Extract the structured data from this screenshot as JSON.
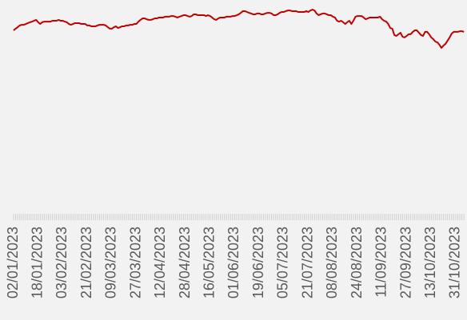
{
  "chart_data": {
    "type": "line",
    "categories": [
      "02/01/2023",
      null,
      null,
      null,
      null,
      null,
      null,
      null,
      null,
      null,
      null,
      null,
      "18/01/2023",
      null,
      null,
      null,
      null,
      null,
      null,
      null,
      null,
      null,
      null,
      null,
      "03/02/2023",
      null,
      null,
      null,
      null,
      null,
      null,
      null,
      null,
      null,
      null,
      null,
      "21/02/2023",
      null,
      null,
      null,
      null,
      null,
      null,
      null,
      null,
      null,
      null,
      null,
      "09/03/2023",
      null,
      null,
      null,
      null,
      null,
      null,
      null,
      null,
      null,
      null,
      null,
      "27/03/2023",
      null,
      null,
      null,
      null,
      null,
      null,
      null,
      null,
      null,
      null,
      null,
      "12/04/2023",
      null,
      null,
      null,
      null,
      null,
      null,
      null,
      null,
      null,
      null,
      null,
      "28/04/2023",
      null,
      null,
      null,
      null,
      null,
      null,
      null,
      null,
      null,
      null,
      null,
      "16/05/2023",
      null,
      null,
      null,
      null,
      null,
      null,
      null,
      null,
      null,
      null,
      null,
      "01/06/2023",
      null,
      null,
      null,
      null,
      null,
      null,
      null,
      null,
      null,
      null,
      null,
      "19/06/2023",
      null,
      null,
      null,
      null,
      null,
      null,
      null,
      null,
      null,
      null,
      null,
      "05/07/2023",
      null,
      null,
      null,
      null,
      null,
      null,
      null,
      null,
      null,
      null,
      null,
      "21/07/2023",
      null,
      null,
      null,
      null,
      null,
      null,
      null,
      null,
      null,
      null,
      null,
      "08/08/2023",
      null,
      null,
      null,
      null,
      null,
      null,
      null,
      null,
      null,
      null,
      null,
      "24/08/2023",
      null,
      null,
      null,
      null,
      null,
      null,
      null,
      null,
      null,
      null,
      null,
      "11/09/2023",
      null,
      null,
      null,
      null,
      null,
      null,
      null,
      null,
      null,
      null,
      null,
      "27/09/2023",
      null,
      null,
      null,
      null,
      null,
      null,
      null,
      null,
      null,
      null,
      null,
      "13/10/2023",
      null,
      null,
      null,
      null,
      null,
      null,
      null,
      null,
      null,
      null,
      null,
      "31/10/2023",
      null,
      null,
      null,
      null
    ],
    "values": [
      85.8,
      86.6,
      87.3,
      88.1,
      88.4,
      88.4,
      88.8,
      89.2,
      89.6,
      89.9,
      90.3,
      90.7,
      89.6,
      88.8,
      89.6,
      89.9,
      89.9,
      89.9,
      89.9,
      90.3,
      90.3,
      90.3,
      90.7,
      90.3,
      90.3,
      89.9,
      89.6,
      88.8,
      88.4,
      88.8,
      89.2,
      89.2,
      89.2,
      88.8,
      88.8,
      88.8,
      88.1,
      88.1,
      87.7,
      87.7,
      87.7,
      88.1,
      88.4,
      88.4,
      88.4,
      88.1,
      87.3,
      86.6,
      86.6,
      87.3,
      87.7,
      86.9,
      87.3,
      87.7,
      87.7,
      88.1,
      88.1,
      88.4,
      88.4,
      88.8,
      88.8,
      89.9,
      90.7,
      91.4,
      91.4,
      91.0,
      90.7,
      90.7,
      91.0,
      91.4,
      91.4,
      91.8,
      91.8,
      91.8,
      92.2,
      92.2,
      92.2,
      92.5,
      92.5,
      92.2,
      91.8,
      92.2,
      92.5,
      92.9,
      92.9,
      92.5,
      92.2,
      92.5,
      93.3,
      93.3,
      92.9,
      92.9,
      92.9,
      92.9,
      92.5,
      92.9,
      92.5,
      91.8,
      91.0,
      90.7,
      91.4,
      91.8,
      91.8,
      91.8,
      92.2,
      92.2,
      92.2,
      92.5,
      92.5,
      92.9,
      93.3,
      94.0,
      94.8,
      94.8,
      94.4,
      94.0,
      93.7,
      93.3,
      93.3,
      93.7,
      93.7,
      93.3,
      93.3,
      93.7,
      94.0,
      94.0,
      93.7,
      92.9,
      92.9,
      93.3,
      94.0,
      94.4,
      94.4,
      94.8,
      95.1,
      95.1,
      94.8,
      94.8,
      94.8,
      94.4,
      94.4,
      94.4,
      94.4,
      94.8,
      94.4,
      95.1,
      95.5,
      95.1,
      93.7,
      92.9,
      93.3,
      93.7,
      93.7,
      93.3,
      92.9,
      92.9,
      92.2,
      91.8,
      90.3,
      89.9,
      90.3,
      89.6,
      88.8,
      89.6,
      90.3,
      88.8,
      90.3,
      92.2,
      92.5,
      92.5,
      92.5,
      91.8,
      91.0,
      91.4,
      91.8,
      91.8,
      91.8,
      91.8,
      91.8,
      92.2,
      91.0,
      90.3,
      89.9,
      88.8,
      86.9,
      86.6,
      83.6,
      83.2,
      84.0,
      84.7,
      82.8,
      82.5,
      83.2,
      84.0,
      84.0,
      85.1,
      85.8,
      85.8,
      84.7,
      83.6,
      83.2,
      85.1,
      85.1,
      84.0,
      82.5,
      81.7,
      80.6,
      80.2,
      79.1,
      77.6,
      78.7,
      79.5,
      81.0,
      82.5,
      84.3,
      85.1,
      85.1,
      85.1,
      85.4,
      85.4,
      85.1
    ],
    "color": "#c00000",
    "ylim": [
      0,
      100
    ]
  }
}
